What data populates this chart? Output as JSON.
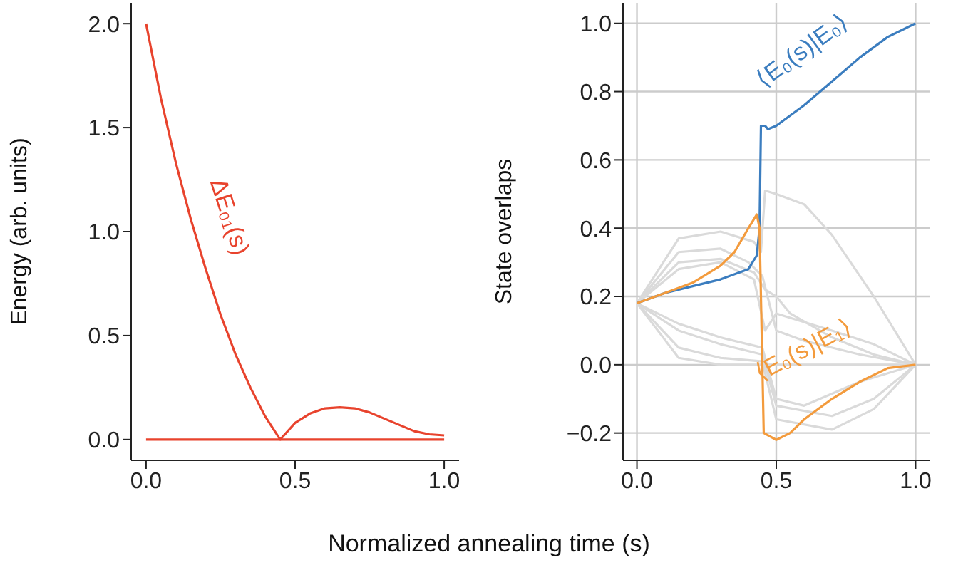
{
  "chart_data": [
    {
      "type": "line",
      "xlabel": "Normalized annealing time (s)",
      "ylabel": "Energy (arb. units)",
      "xlim": [
        -0.05,
        1.05
      ],
      "ylim": [
        -0.1,
        2.1
      ],
      "xticks": [
        {
          "value": 0,
          "label": "0.0"
        },
        {
          "value": 0.5,
          "label": "0.5"
        },
        {
          "value": 1,
          "label": "1.0"
        }
      ],
      "yticks": [
        {
          "value": 0,
          "label": "0.0"
        },
        {
          "value": 0.5,
          "label": "0.5"
        },
        {
          "value": 1,
          "label": "1.0"
        },
        {
          "value": 1.5,
          "label": "1.5"
        },
        {
          "value": 2,
          "label": "2.0"
        }
      ],
      "grid": false,
      "legend": false,
      "series": [
        {
          "color": "#e8432d",
          "x": [
            0,
            1
          ],
          "values": [
            0,
            0
          ]
        },
        {
          "name": "ΔE₀₁(s)",
          "color": "#e8432d",
          "x": [
            0,
            0.05,
            0.1,
            0.15,
            0.2,
            0.25,
            0.3,
            0.35,
            0.4,
            0.45,
            0.5,
            0.55,
            0.6,
            0.65,
            0.7,
            0.75,
            0.8,
            0.85,
            0.9,
            0.95,
            1.0
          ],
          "values": [
            2.0,
            1.64,
            1.33,
            1.06,
            0.82,
            0.6,
            0.41,
            0.25,
            0.11,
            0.0,
            0.08,
            0.125,
            0.15,
            0.155,
            0.15,
            0.13,
            0.1,
            0.07,
            0.04,
            0.025,
            0.02
          ]
        }
      ]
    },
    {
      "type": "line",
      "ylabel": "State overlaps",
      "xlim": [
        -0.05,
        1.05
      ],
      "ylim": [
        -0.28,
        1.06
      ],
      "xticks": [
        {
          "value": 0,
          "label": "0.0"
        },
        {
          "value": 0.5,
          "label": "0.5"
        },
        {
          "value": 1,
          "label": "1.0"
        }
      ],
      "yticks": [
        {
          "value": -0.2,
          "label": "−0.2"
        },
        {
          "value": 0,
          "label": "0.0"
        },
        {
          "value": 0.2,
          "label": "0.2"
        },
        {
          "value": 0.4,
          "label": "0.4"
        },
        {
          "value": 0.6,
          "label": "0.6"
        },
        {
          "value": 0.8,
          "label": "0.8"
        },
        {
          "value": 1,
          "label": "1.0"
        }
      ],
      "grid": true,
      "legend": false,
      "series": [
        {
          "color": "#dadada",
          "x": [
            0,
            0.15,
            0.3,
            0.42,
            0.445,
            0.46,
            0.5,
            0.6,
            0.7,
            0.85,
            1
          ],
          "values": [
            0.18,
            0.37,
            0.39,
            0.36,
            0.33,
            0.51,
            0.5,
            0.47,
            0.38,
            0.2,
            0
          ]
        },
        {
          "color": "#dadada",
          "x": [
            0,
            0.15,
            0.3,
            0.42,
            0.46,
            0.5,
            0.55,
            0.7,
            0.85,
            1
          ],
          "values": [
            0.18,
            0.3,
            0.31,
            0.27,
            0.22,
            0.2,
            0.15,
            0.08,
            0.03,
            0
          ]
        },
        {
          "color": "#dadada",
          "x": [
            0,
            0.15,
            0.3,
            0.42,
            0.46,
            0.5,
            0.7,
            0.85,
            1
          ],
          "values": [
            0.18,
            0.28,
            0.3,
            0.25,
            0.1,
            0.15,
            0.1,
            0.06,
            0
          ]
        },
        {
          "color": "#dadada",
          "x": [
            0,
            0.15,
            0.3,
            0.4,
            0.45,
            0.5,
            0.6,
            0.8,
            1
          ],
          "values": [
            0.18,
            0.33,
            0.34,
            0.3,
            0.26,
            0.1,
            0.07,
            0.03,
            0
          ]
        },
        {
          "color": "#dadada",
          "x": [
            0,
            0.15,
            0.3,
            0.45,
            0.5,
            0.7,
            0.85,
            1
          ],
          "values": [
            0.18,
            0.1,
            0.06,
            0.03,
            -0.12,
            -0.15,
            -0.1,
            0
          ]
        },
        {
          "color": "#dadada",
          "x": [
            0,
            0.15,
            0.3,
            0.45,
            0.5,
            0.7,
            0.85,
            1
          ],
          "values": [
            0.18,
            0.05,
            0.02,
            0.01,
            -0.16,
            -0.19,
            -0.13,
            0
          ]
        },
        {
          "color": "#dadada",
          "x": [
            0,
            0.15,
            0.3,
            0.45,
            0.6,
            1
          ],
          "values": [
            0.18,
            0.02,
            0.0,
            0.0,
            0.0,
            0
          ]
        },
        {
          "color": "#dadada",
          "x": [
            0,
            0.15,
            0.3,
            0.45,
            0.5,
            0.6,
            0.8,
            1
          ],
          "values": [
            0.18,
            0.12,
            0.08,
            0.05,
            -0.1,
            -0.12,
            -0.05,
            0
          ]
        },
        {
          "name": "⟨E₀(s)|E₀⟩",
          "color": "#3b7dbf",
          "x": [
            0,
            0.1,
            0.2,
            0.3,
            0.4,
            0.43,
            0.44,
            0.445,
            0.46,
            0.47,
            0.5,
            0.6,
            0.7,
            0.8,
            0.9,
            1.0
          ],
          "values": [
            0.18,
            0.21,
            0.23,
            0.25,
            0.28,
            0.32,
            0.4,
            0.7,
            0.7,
            0.69,
            0.7,
            0.76,
            0.83,
            0.9,
            0.96,
            1.0
          ]
        },
        {
          "name": "⟨E₀(s)|E₁⟩",
          "color": "#f39b3d",
          "x": [
            0,
            0.1,
            0.2,
            0.3,
            0.35,
            0.4,
            0.43,
            0.44,
            0.455,
            0.5,
            0.55,
            0.6,
            0.7,
            0.8,
            0.9,
            1.0
          ],
          "values": [
            0.18,
            0.21,
            0.24,
            0.29,
            0.33,
            0.4,
            0.44,
            0.4,
            -0.2,
            -0.22,
            -0.2,
            -0.16,
            -0.1,
            -0.05,
            -0.01,
            0.0
          ]
        }
      ]
    }
  ]
}
